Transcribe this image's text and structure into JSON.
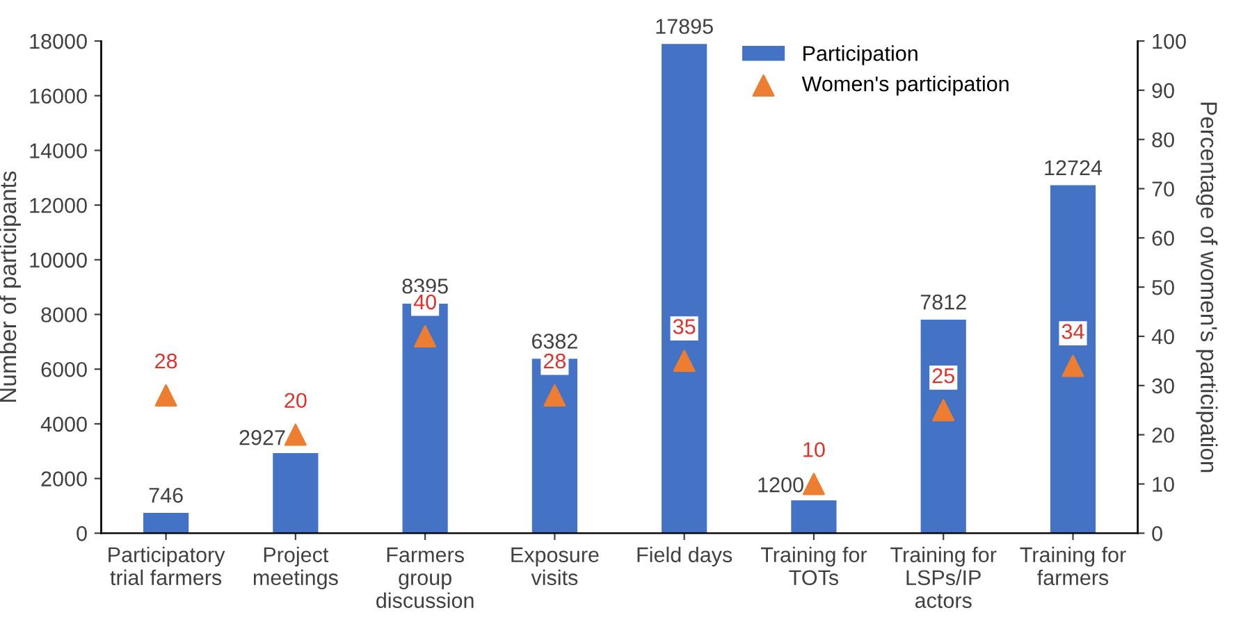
{
  "chart_data": {
    "type": "bar",
    "categories": [
      "Participatory\ntrial farmers",
      "Project\nmeetings",
      "Farmers\ngroup\ndiscussion",
      "Exposure\nvisits",
      "Field days",
      "Training for\nTOTs",
      "Training for\nLSPs/IP\nactors",
      "Training for\nfarmers"
    ],
    "series": [
      {
        "name": "Participation",
        "color": "#4472c4",
        "values": [
          746,
          2927,
          8395,
          6382,
          17895,
          1200,
          7812,
          12724
        ]
      },
      {
        "name": "Women's participation",
        "type": "scatter",
        "axis": "y2",
        "marker": "triangle",
        "color": "#ed7d31",
        "values": [
          28,
          20,
          40,
          28,
          35,
          10,
          25,
          34
        ]
      }
    ],
    "ylabel": "Number of participants",
    "y2label": "Percentage of women's participation",
    "ylim": [
      0,
      18000
    ],
    "yticks": [
      0,
      2000,
      4000,
      6000,
      8000,
      10000,
      12000,
      14000,
      16000,
      18000
    ],
    "y2lim": [
      0,
      100
    ],
    "y2ticks": [
      0,
      10,
      20,
      30,
      40,
      50,
      60,
      70,
      80,
      90,
      100
    ],
    "data_labels": true,
    "grid": false,
    "legend": "top right"
  }
}
